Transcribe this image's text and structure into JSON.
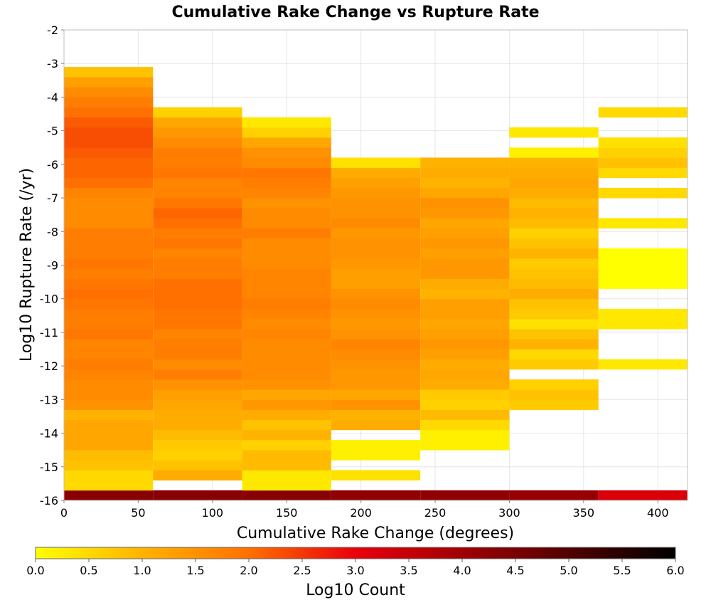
{
  "chart_data": {
    "type": "heatmap",
    "title": "Cumulative Rake Change vs Rupture Rate",
    "xlabel": "Cumulative Rake Change (degrees)",
    "ylabel": "Log10 Rupture Rate (/yr)",
    "xlim": [
      0,
      420
    ],
    "ylim": [
      -16,
      -2
    ],
    "x_ticks": [
      0,
      50,
      100,
      150,
      200,
      250,
      300,
      350,
      400
    ],
    "y_ticks": [
      -16,
      -15,
      -14,
      -13,
      -12,
      -11,
      -10,
      -9,
      -8,
      -7,
      -6,
      -5,
      -4,
      -3,
      -2
    ],
    "grid": true,
    "colorscale": {
      "label": "Log10 Count",
      "range": [
        0,
        6
      ],
      "ticks": [
        0.0,
        0.5,
        1.0,
        1.5,
        2.0,
        2.5,
        3.0,
        3.5,
        4.0,
        4.5,
        5.0,
        5.5,
        6.0
      ],
      "stops": [
        {
          "v": 0.0,
          "color": "#ffff00"
        },
        {
          "v": 1.0,
          "color": "#ffb300"
        },
        {
          "v": 2.0,
          "color": "#ff7000"
        },
        {
          "v": 3.0,
          "color": "#e8000c"
        },
        {
          "v": 4.5,
          "color": "#7a0000"
        },
        {
          "v": 6.0,
          "color": "#000000"
        }
      ]
    },
    "bin_width_x": 60,
    "bin_width_y": 0.3,
    "columns": [
      {
        "x_start": 0,
        "y_start": -16,
        "values": [
          4.3,
          0.5,
          0.5,
          0.8,
          0.9,
          1.2,
          1.2,
          1.2,
          1.0,
          1.5,
          1.6,
          1.6,
          1.7,
          1.8,
          1.7,
          1.7,
          1.9,
          1.8,
          1.8,
          1.9,
          2.0,
          1.9,
          1.8,
          1.9,
          1.8,
          1.8,
          1.8,
          1.6,
          1.6,
          1.6,
          1.7,
          2.0,
          2.1,
          2.1,
          2.2,
          2.3,
          2.3,
          2.2,
          2.0,
          1.8,
          1.6,
          1.3,
          0.8
        ]
      },
      {
        "x_start": 60,
        "y_start": -16,
        "values": [
          4.3,
          null,
          1.1,
          0.8,
          0.6,
          0.7,
          0.9,
          1.1,
          1.1,
          1.2,
          1.3,
          1.5,
          1.8,
          1.6,
          1.8,
          1.8,
          1.7,
          1.9,
          1.9,
          2.0,
          2.0,
          2.0,
          1.8,
          1.8,
          1.7,
          1.9,
          1.8,
          2.0,
          2.1,
          1.9,
          1.7,
          1.7,
          1.9,
          1.8,
          1.8,
          1.6,
          1.4,
          1.2,
          0.6
        ]
      },
      {
        "x_start": 120,
        "y_start": -16,
        "values": [
          4.3,
          0.3,
          0.3,
          0.9,
          0.9,
          0.6,
          1.0,
          0.8,
          1.1,
          1.4,
          1.2,
          1.5,
          1.6,
          1.6,
          1.6,
          1.6,
          1.7,
          1.6,
          1.7,
          1.8,
          1.7,
          1.7,
          1.7,
          1.6,
          1.6,
          1.6,
          1.8,
          1.6,
          1.6,
          1.5,
          1.7,
          1.8,
          1.9,
          1.6,
          1.5,
          1.2,
          0.6,
          0.3
        ]
      },
      {
        "x_start": 180,
        "y_start": -16,
        "values": [
          4.2,
          null,
          0.4,
          null,
          0.2,
          0.2,
          null,
          1.1,
          1.0,
          1.5,
          1.2,
          1.4,
          1.4,
          1.5,
          1.6,
          1.7,
          1.5,
          1.4,
          1.5,
          1.6,
          1.5,
          1.3,
          1.3,
          1.4,
          1.5,
          1.5,
          1.4,
          1.6,
          1.5,
          1.5,
          1.4,
          1.3,
          1.1,
          0.4
        ]
      },
      {
        "x_start": 240,
        "y_start": -16,
        "values": [
          4.2,
          null,
          null,
          null,
          null,
          0.2,
          0.2,
          0.5,
          0.9,
          0.6,
          0.7,
          1.1,
          1.2,
          1.1,
          1.3,
          1.4,
          1.3,
          1.2,
          1.3,
          1.3,
          1.0,
          1.1,
          1.4,
          1.4,
          1.3,
          1.4,
          1.3,
          1.2,
          1.4,
          1.5,
          1.2,
          1.0,
          1.1,
          1.0
        ]
      },
      {
        "x_start": 300,
        "y_start": -16,
        "values": [
          4.1,
          null,
          null,
          null,
          null,
          null,
          null,
          null,
          null,
          0.7,
          0.8,
          0.6,
          null,
          0.7,
          0.5,
          1.0,
          0.8,
          0.4,
          0.7,
          0.8,
          1.1,
          0.9,
          0.8,
          0.7,
          1.0,
          0.8,
          0.6,
          0.9,
          1.0,
          0.9,
          1.1,
          1.2,
          1.1,
          1.0,
          0.2,
          null,
          0.3
        ]
      },
      {
        "x_start": 360,
        "y_start": -16,
        "values": [
          3.2,
          null,
          null,
          null,
          null,
          null,
          null,
          null,
          null,
          null,
          null,
          null,
          null,
          0.3,
          null,
          null,
          null,
          0.3,
          0.3,
          null,
          null,
          0.0,
          0.0,
          0.0,
          0.0,
          null,
          null,
          0.3,
          null,
          null,
          0.5,
          null,
          0.5,
          0.8,
          0.6,
          0.4,
          null,
          null,
          0.5
        ]
      }
    ]
  }
}
